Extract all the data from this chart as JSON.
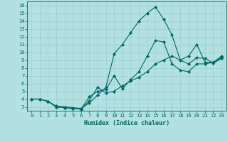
{
  "xlabel": "Humidex (Indice chaleur)",
  "background_color": "#b3e0e0",
  "grid_color": "#99cccc",
  "line_color": "#006666",
  "xlim": [
    -0.5,
    23.5
  ],
  "ylim": [
    2.5,
    16.5
  ],
  "xticks": [
    0,
    1,
    2,
    3,
    4,
    5,
    6,
    7,
    8,
    9,
    10,
    11,
    12,
    13,
    14,
    15,
    16,
    17,
    18,
    19,
    20,
    21,
    22,
    23
  ],
  "yticks": [
    3,
    4,
    5,
    6,
    7,
    8,
    9,
    10,
    11,
    12,
    13,
    14,
    15,
    16
  ],
  "line1_x": [
    0,
    1,
    2,
    3,
    4,
    5,
    6,
    7,
    8,
    9,
    10,
    11,
    12,
    13,
    14,
    15,
    16,
    17,
    18,
    19,
    20,
    21,
    22,
    23
  ],
  "line1_y": [
    4.0,
    4.0,
    3.7,
    3.0,
    2.9,
    2.8,
    2.7,
    4.3,
    5.0,
    5.2,
    7.0,
    5.3,
    6.5,
    7.5,
    9.5,
    11.5,
    11.3,
    8.5,
    7.7,
    7.5,
    8.5,
    8.5,
    8.7,
    9.3
  ],
  "line2_x": [
    0,
    1,
    2,
    3,
    4,
    5,
    6,
    7,
    8,
    9,
    10,
    11,
    12,
    13,
    14,
    15,
    16,
    17,
    18,
    19,
    20,
    21,
    22,
    23
  ],
  "line2_y": [
    4.0,
    4.0,
    3.7,
    3.1,
    3.0,
    2.9,
    2.8,
    3.5,
    4.5,
    5.5,
    9.8,
    11.0,
    12.5,
    14.0,
    15.0,
    15.8,
    14.2,
    12.2,
    9.0,
    8.5,
    9.3,
    9.2,
    8.6,
    9.2
  ],
  "line3_x": [
    0,
    1,
    2,
    3,
    4,
    5,
    6,
    7,
    8,
    9,
    10,
    11,
    12,
    13,
    14,
    15,
    16,
    17,
    18,
    19,
    20,
    21,
    22,
    23
  ],
  "line3_y": [
    4.0,
    4.0,
    3.7,
    3.0,
    2.9,
    2.8,
    2.7,
    3.8,
    5.5,
    4.8,
    5.0,
    5.7,
    6.3,
    6.8,
    7.5,
    8.5,
    9.0,
    9.5,
    9.0,
    9.5,
    11.0,
    8.7,
    8.7,
    9.5
  ],
  "tick_fontsize": 5.0,
  "xlabel_fontsize": 6.0
}
